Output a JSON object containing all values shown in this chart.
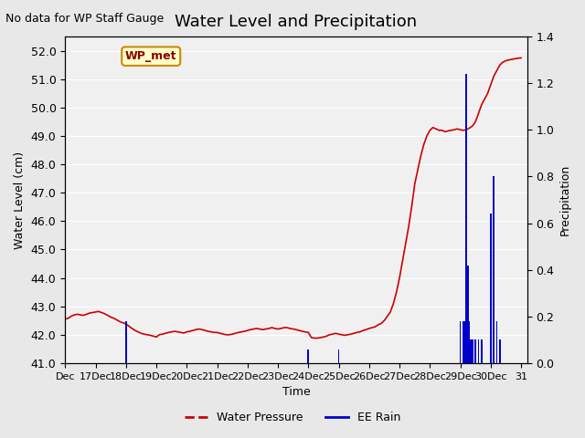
{
  "title": "Water Level and Precipitation",
  "subtitle": "No data for WP Staff Gauge",
  "xlabel": "Time",
  "ylabel_left": "Water Level (cm)",
  "ylabel_right": "Precipitation",
  "ylim_left": [
    41.0,
    52.5
  ],
  "ylim_right": [
    0.0,
    1.4
  ],
  "yticks_left": [
    41.0,
    42.0,
    43.0,
    44.0,
    45.0,
    46.0,
    47.0,
    48.0,
    49.0,
    50.0,
    51.0,
    52.0
  ],
  "yticks_right": [
    0.0,
    0.2,
    0.4,
    0.6,
    0.8,
    1.0,
    1.2,
    1.4
  ],
  "bg_color": "#e8e8e8",
  "plot_bg_color": "#f0f0f0",
  "water_pressure_color": "#cc0000",
  "rain_color": "#0000cc",
  "legend_entries": [
    "Water Pressure",
    "EE Rain"
  ],
  "wp_met_label": "WP_met",
  "wp_met_bg": "#ffffcc",
  "wp_met_border": "#cc8800",
  "water_pressure_data": {
    "x": [
      16,
      16.1,
      16.2,
      16.3,
      16.4,
      16.5,
      16.6,
      16.7,
      16.8,
      16.9,
      17.0,
      17.1,
      17.2,
      17.3,
      17.4,
      17.5,
      17.6,
      17.7,
      17.8,
      17.9,
      18.0,
      18.1,
      18.2,
      18.3,
      18.4,
      18.5,
      18.6,
      18.7,
      18.8,
      18.9,
      19.0,
      19.1,
      19.2,
      19.3,
      19.4,
      19.5,
      19.6,
      19.7,
      19.8,
      19.9,
      20.0,
      20.1,
      20.2,
      20.3,
      20.4,
      20.5,
      20.6,
      20.7,
      20.8,
      20.9,
      21.0,
      21.1,
      21.2,
      21.3,
      21.4,
      21.5,
      21.6,
      21.7,
      21.8,
      21.9,
      22.0,
      22.1,
      22.2,
      22.3,
      22.4,
      22.5,
      22.6,
      22.7,
      22.8,
      22.9,
      23.0,
      23.1,
      23.2,
      23.3,
      23.4,
      23.5,
      23.6,
      23.7,
      23.8,
      23.9,
      24.0,
      24.1,
      24.2,
      24.3,
      24.4,
      24.5,
      24.6,
      24.7,
      24.8,
      24.9,
      25.0,
      25.1,
      25.2,
      25.3,
      25.4,
      25.5,
      25.6,
      25.7,
      25.8,
      25.9,
      26.0,
      26.1,
      26.2,
      26.3,
      26.4,
      26.5,
      26.6,
      26.7,
      26.8,
      26.9,
      27.0,
      27.1,
      27.2,
      27.3,
      27.4,
      27.5,
      27.6,
      27.7,
      27.8,
      27.9,
      28.0,
      28.1,
      28.2,
      28.3,
      28.4,
      28.5,
      28.6,
      28.7,
      28.8,
      28.9,
      29.0,
      29.1,
      29.2,
      29.3,
      29.4,
      29.5,
      29.6,
      29.7,
      29.8,
      29.9,
      30.0,
      30.1,
      30.2,
      30.3,
      30.4,
      30.5,
      30.6,
      30.7,
      30.8,
      30.9,
      31.0
    ],
    "y": [
      42.55,
      42.58,
      42.65,
      42.7,
      42.72,
      42.7,
      42.68,
      42.72,
      42.76,
      42.78,
      42.8,
      42.82,
      42.78,
      42.74,
      42.68,
      42.62,
      42.58,
      42.52,
      42.46,
      42.42,
      42.38,
      42.3,
      42.22,
      42.15,
      42.1,
      42.05,
      42.02,
      42.0,
      41.98,
      41.95,
      41.92,
      42.0,
      42.02,
      42.05,
      42.08,
      42.1,
      42.12,
      42.1,
      42.08,
      42.06,
      42.1,
      42.12,
      42.15,
      42.18,
      42.2,
      42.18,
      42.15,
      42.12,
      42.1,
      42.08,
      42.08,
      42.05,
      42.02,
      42.0,
      42.0,
      42.02,
      42.05,
      42.08,
      42.1,
      42.12,
      42.15,
      42.18,
      42.2,
      42.22,
      42.2,
      42.18,
      42.2,
      42.22,
      42.25,
      42.22,
      42.2,
      42.22,
      42.25,
      42.25,
      42.22,
      42.2,
      42.18,
      42.15,
      42.12,
      42.1,
      42.08,
      41.9,
      41.88,
      41.88,
      41.9,
      41.92,
      41.95,
      42.0,
      42.02,
      42.05,
      42.02,
      42.0,
      41.98,
      42.0,
      42.02,
      42.05,
      42.08,
      42.1,
      42.15,
      42.18,
      42.22,
      42.25,
      42.28,
      42.35,
      42.4,
      42.5,
      42.65,
      42.8,
      43.1,
      43.5,
      44.0,
      44.6,
      45.2,
      45.8,
      46.5,
      47.3,
      47.8,
      48.3,
      48.7,
      49.0,
      49.2,
      49.3,
      49.25,
      49.2,
      49.2,
      49.15,
      49.18,
      49.2,
      49.22,
      49.25,
      49.22,
      49.2,
      49.22,
      49.28,
      49.35,
      49.5,
      49.8,
      50.1,
      50.3,
      50.5,
      50.8,
      51.1,
      51.3,
      51.5,
      51.6,
      51.65,
      51.68,
      51.7,
      51.72,
      51.74,
      51.75
    ]
  },
  "rain_data": {
    "x": [
      18.0,
      18.01,
      20.0,
      20.01,
      24.0,
      24.01,
      25.0,
      25.01,
      29.0,
      29.01,
      29.1,
      29.11,
      29.15,
      29.16,
      29.2,
      29.21,
      29.25,
      29.26,
      29.3,
      29.31,
      29.35,
      29.36,
      29.4,
      29.41,
      29.5,
      29.51,
      29.6,
      29.61,
      29.7,
      29.71,
      30.0,
      30.01,
      30.1,
      30.11,
      30.2,
      30.21,
      30.3,
      30.31
    ],
    "heights": [
      0.18,
      0,
      0,
      0,
      0.06,
      0,
      0.06,
      0,
      0.18,
      0,
      0.18,
      0,
      0.18,
      0,
      1.24,
      0,
      0.42,
      0,
      0.18,
      0,
      0.1,
      0,
      0.1,
      0,
      0.1,
      0,
      0.1,
      0,
      0.1,
      0,
      0.64,
      0,
      0.8,
      0,
      0.18,
      0,
      0.1,
      0
    ]
  },
  "xtick_positions": [
    16,
    17,
    18,
    19,
    20,
    21,
    22,
    23,
    24,
    25,
    26,
    27,
    28,
    29,
    30,
    31
  ],
  "xtick_labels": [
    "Dec",
    "17Dec",
    "18Dec",
    "19Dec",
    "20Dec",
    "21Dec",
    "22Dec",
    "23Dec",
    "24Dec",
    "25Dec",
    "26Dec",
    "27Dec",
    "28Dec",
    "29Dec",
    "30Dec",
    "31"
  ],
  "xlim": [
    16,
    31.2
  ]
}
